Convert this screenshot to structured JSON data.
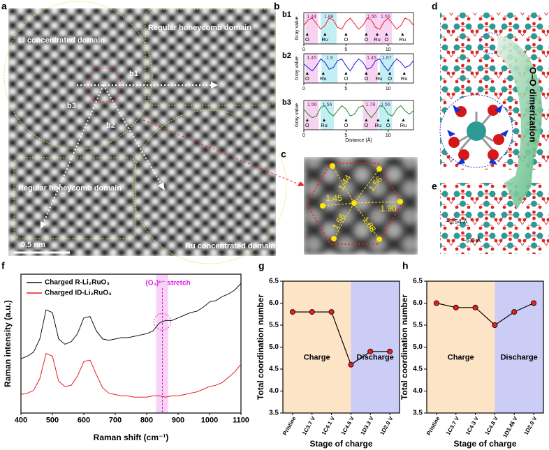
{
  "panel_labels": [
    "a",
    "b",
    "c",
    "d",
    "e",
    "f",
    "g",
    "h"
  ],
  "images": {
    "a": {
      "domains": [
        "Li concentrated domain",
        "Regular honeycomb domain",
        "Regular honeycomb domain",
        "Ru concentrated domain"
      ],
      "directions": [
        "b1",
        "b2",
        "b3"
      ],
      "scale_bar": "0.5 nm"
    },
    "c": {
      "distances": [
        "1.44",
        "1.56",
        "1.45",
        "1.90",
        "1.56",
        "1.88"
      ]
    },
    "d": {
      "annotation": "O–O dimerization"
    },
    "e": {
      "distances": [
        "~1.54 Å",
        "~5.0 Å"
      ]
    }
  },
  "chart_data": [
    {
      "type": "line",
      "subtitle": "b1",
      "ylabel": "Gray value",
      "x": [
        0,
        0.5,
        1,
        1.5,
        2,
        2.5,
        3,
        3.5,
        4,
        4.5,
        5,
        5.5,
        6,
        6.5,
        7,
        7.5,
        8,
        8.5,
        9,
        9.5,
        10,
        10.5,
        11,
        11.5,
        12,
        12.5,
        13
      ],
      "xlim": [
        0,
        13
      ],
      "xticks": [
        0,
        5,
        10
      ],
      "ylim": [
        -0.5,
        1.2
      ],
      "series": [
        {
          "color": "#e62129",
          "values": [
            0.5,
            0.8,
            0.9,
            0.6,
            0.3,
            0.5,
            0.9,
            0.8,
            0.4,
            0.3,
            0.7,
            0.9,
            0.6,
            0.3,
            0.5,
            0.9,
            0.8,
            0.4,
            0.3,
            0.7,
            0.9,
            0.6,
            0.3,
            0.5,
            0.9,
            0.8,
            0.5
          ]
        }
      ],
      "bands": [
        {
          "start": 0.2,
          "width": 1.44,
          "color": "#f7d2f1"
        },
        {
          "start": 2.0,
          "width": 1.88,
          "color": "#c2eff4"
        },
        {
          "start": 7.3,
          "width": 1.55,
          "color": "#f7d2f1"
        },
        {
          "start": 8.9,
          "width": 1.55,
          "color": "#f7d2f1"
        }
      ],
      "atoms": [
        {
          "label": "O",
          "x": 0.4
        },
        {
          "label": "Ru",
          "x": 2.5
        },
        {
          "label": "O",
          "x": 5.0
        },
        {
          "label": "O",
          "x": 7.4
        },
        {
          "label": "Ru",
          "x": 8.7
        },
        {
          "label": "O",
          "x": 9.8
        },
        {
          "label": "Ru",
          "x": 11.7
        }
      ]
    },
    {
      "type": "line",
      "subtitle": "b2",
      "ylabel": "Gray value",
      "x": [
        0,
        0.5,
        1,
        1.5,
        2,
        2.5,
        3,
        3.5,
        4,
        4.5,
        5,
        5.5,
        6,
        6.5,
        7,
        7.5,
        8,
        8.5,
        9,
        9.5,
        10,
        10.5,
        11,
        11.5,
        12,
        12.5,
        13
      ],
      "xlim": [
        0,
        13
      ],
      "xticks": [
        0,
        5,
        10
      ],
      "ylim": [
        -0.5,
        1.2
      ],
      "series": [
        {
          "color": "#1a1ae0",
          "values": [
            0.6,
            0.4,
            0.2,
            0.5,
            0.9,
            0.7,
            0.3,
            0.4,
            0.8,
            0.9,
            0.5,
            0.2,
            0.6,
            0.9,
            0.7,
            0.3,
            0.4,
            0.8,
            0.9,
            0.5,
            0.2,
            0.6,
            0.9,
            0.7,
            0.4,
            0.5,
            0.8
          ]
        }
      ],
      "bands": [
        {
          "start": 0.2,
          "width": 1.45,
          "color": "#f7d2f1"
        },
        {
          "start": 2.1,
          "width": 1.9,
          "color": "#c2eff4"
        },
        {
          "start": 7.3,
          "width": 1.45,
          "color": "#f7d2f1"
        },
        {
          "start": 9.0,
          "width": 1.67,
          "color": "#c2eff4"
        }
      ],
      "atoms": [
        {
          "label": "O",
          "x": 0.4
        },
        {
          "label": "Ru",
          "x": 2.3
        },
        {
          "label": "O",
          "x": 5.0
        },
        {
          "label": "O",
          "x": 7.4
        },
        {
          "label": "Ru",
          "x": 8.9
        },
        {
          "label": "O",
          "x": 10.2
        },
        {
          "label": "Ru",
          "x": 11.9
        }
      ]
    },
    {
      "type": "line",
      "subtitle": "b3",
      "ylabel": "Gray value",
      "xlabel": "Distance (Å)",
      "x": [
        0,
        0.5,
        1,
        1.5,
        2,
        2.5,
        3,
        3.5,
        4,
        4.5,
        5,
        5.5,
        6,
        6.5,
        7,
        7.5,
        8,
        8.5,
        9,
        9.5,
        10,
        10.5,
        11,
        11.5,
        12,
        12.5,
        13
      ],
      "xlim": [
        0,
        13
      ],
      "xticks": [
        0,
        5,
        10
      ],
      "ylim": [
        -0.5,
        1.2
      ],
      "series": [
        {
          "color": "#1f8a2e",
          "values": [
            0.7,
            0.4,
            0.2,
            0.3,
            0.8,
            0.9,
            0.5,
            0.3,
            0.6,
            0.9,
            0.7,
            0.3,
            0.4,
            0.8,
            0.9,
            0.5,
            0.2,
            0.5,
            0.9,
            0.8,
            0.4,
            0.3,
            0.7,
            0.9,
            0.6,
            0.4,
            0.6
          ]
        }
      ],
      "bands": [
        {
          "start": 0.2,
          "width": 1.56,
          "color": "#f7d2f1"
        },
        {
          "start": 2.0,
          "width": 1.56,
          "color": "#c2eff4"
        },
        {
          "start": 7.0,
          "width": 1.78,
          "color": "#f7d2f1"
        },
        {
          "start": 8.9,
          "width": 1.56,
          "color": "#c2eff4"
        }
      ],
      "atoms": [
        {
          "label": "O",
          "x": 0.4
        },
        {
          "label": "Ru",
          "x": 2.4
        },
        {
          "label": "O",
          "x": 5.0
        },
        {
          "label": "O",
          "x": 7.4
        },
        {
          "label": "Ru",
          "x": 8.8
        },
        {
          "label": "O",
          "x": 10.0
        },
        {
          "label": "Ru",
          "x": 11.8
        }
      ]
    },
    {
      "type": "line",
      "xlabel": "Raman shift (cm⁻¹)",
      "ylabel": "Raman intensity (a.u.)",
      "x": [
        400,
        420,
        440,
        460,
        480,
        500,
        520,
        540,
        560,
        580,
        600,
        620,
        640,
        660,
        680,
        700,
        720,
        740,
        760,
        780,
        800,
        820,
        840,
        860,
        880,
        900,
        920,
        940,
        960,
        980,
        1000,
        1020,
        1040,
        1060,
        1080,
        1100
      ],
      "xlim": [
        400,
        1100
      ],
      "xticks": [
        400,
        500,
        600,
        700,
        800,
        900,
        1000,
        1100
      ],
      "ylim": [
        0,
        10.5
      ],
      "legend": "upper left",
      "series": [
        {
          "name": "Charged R-Li₂RuO₃",
          "color": "#111111",
          "values": [
            4.1,
            4.3,
            4.6,
            5.6,
            7.8,
            7.6,
            5.6,
            5.2,
            5.4,
            6.0,
            7.2,
            7.3,
            6.2,
            5.6,
            5.5,
            5.6,
            5.7,
            5.7,
            5.8,
            5.9,
            6.0,
            6.2,
            6.8,
            7.0,
            7.0,
            7.2,
            7.4,
            7.6,
            7.7,
            8.0,
            8.4,
            8.5,
            8.8,
            9.0,
            9.3,
            9.8
          ]
        },
        {
          "name": "Charged ID-Li₂RuO₃",
          "color": "#e8191e",
          "values": [
            1.4,
            1.5,
            1.7,
            2.6,
            4.5,
            4.3,
            2.4,
            2.0,
            2.1,
            2.8,
            3.9,
            4.0,
            2.9,
            1.9,
            1.5,
            1.4,
            1.3,
            1.3,
            1.2,
            1.2,
            1.2,
            1.3,
            1.3,
            1.2,
            1.3,
            1.3,
            1.4,
            1.5,
            1.6,
            1.8,
            2.0,
            2.1,
            2.3,
            2.7,
            3.1,
            3.7
          ]
        }
      ],
      "highlight": {
        "from": 830,
        "to": 868,
        "color": "#f6c8f4"
      },
      "annotation": {
        "text": "(O₂)ⁿ⁻ stretch",
        "x": 850,
        "color": "#e01ee0"
      }
    },
    {
      "type": "line",
      "xlabel": "Stage of charge",
      "ylabel": "Total coordination number",
      "categories": [
        "Pristine",
        "1C3.7 V",
        "1C4.1 V",
        "1C4.6 V",
        "1D3.3 V",
        "1D2.0 V"
      ],
      "series": [
        {
          "color": "#e3201b",
          "line_color": "#000000",
          "values": [
            5.8,
            5.8,
            5.8,
            4.6,
            4.9,
            4.9
          ]
        }
      ],
      "markers": true,
      "ylim": [
        3.5,
        6.5
      ],
      "yticks": [
        3.5,
        {
          "value": 4,
          "label": "4.0"
        },
        4.5,
        {
          "value": 5,
          "label": "5.0"
        },
        5.5,
        {
          "value": 6,
          "label": "6.0"
        },
        6.5
      ],
      "regions": [
        {
          "label": "Charge",
          "color": "#fde4c6"
        },
        {
          "label": "Discharge",
          "color": "#cccdf7"
        }
      ],
      "split_at": "1C4.6 V"
    },
    {
      "type": "line",
      "xlabel": "Stage of charge",
      "ylabel": "Total coordination number",
      "categories": [
        "Pristine",
        "1C3.7 V",
        "1C4.3 V",
        "1C4.8 V",
        "1D3.46 V",
        "1D2.0 V"
      ],
      "series": [
        {
          "color": "#e3201b",
          "line_color": "#000000",
          "values": [
            6.0,
            5.9,
            5.9,
            5.5,
            5.8,
            6.0
          ]
        }
      ],
      "markers": true,
      "ylim": [
        3.5,
        6.5
      ],
      "yticks": [
        3.5,
        {
          "value": 4,
          "label": "4.0"
        },
        4.5,
        {
          "value": 5,
          "label": "5.0"
        },
        5.5,
        {
          "value": 6,
          "label": "6.0"
        },
        6.5
      ],
      "regions": [
        {
          "label": "Charge",
          "color": "#fde4c6"
        },
        {
          "label": "Discharge",
          "color": "#cccdf7"
        }
      ],
      "split_at": "1C4.8 V"
    }
  ]
}
